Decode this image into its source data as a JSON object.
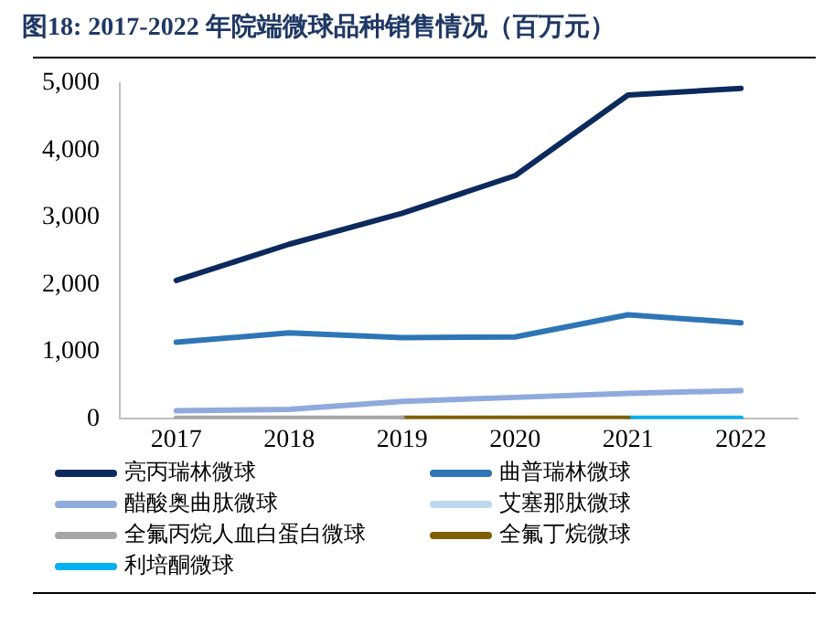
{
  "chart_data": {
    "type": "line",
    "title": "图18:  2017-2022 年院端微球品种销售情况（百万元）",
    "categories": [
      "2017",
      "2018",
      "2019",
      "2020",
      "2021",
      "2022"
    ],
    "series": [
      {
        "name": "亮丙瑞林微球",
        "color": "#0d2a5e",
        "values": [
          2060,
          2600,
          3060,
          3620,
          4820,
          4920
        ]
      },
      {
        "name": "曲普瑞林微球",
        "color": "#2e75b6",
        "values": [
          1140,
          1280,
          1210,
          1220,
          1550,
          1430
        ]
      },
      {
        "name": "醋酸奥曲肽微球",
        "color": "#8faadc",
        "values": [
          120,
          140,
          260,
          320,
          380,
          420
        ]
      },
      {
        "name": "艾塞那肽微球",
        "color": "#bdd7ee",
        "values": [
          null,
          null,
          null,
          null,
          null,
          null
        ]
      },
      {
        "name": "全氟丙烷人血白蛋白微球",
        "color": "#a6a6a6",
        "values": [
          10,
          10,
          10,
          null,
          null,
          null
        ]
      },
      {
        "name": "全氟丁烷微球",
        "color": "#7f6000",
        "values": [
          null,
          null,
          10,
          10,
          10,
          null
        ]
      },
      {
        "name": "利培酮微球",
        "color": "#00b0f0",
        "values": [
          null,
          null,
          null,
          null,
          10,
          10
        ]
      }
    ],
    "ylim": [
      0,
      5000
    ],
    "yticks": [
      0,
      {
        "value": 1000,
        "label": "1,000"
      },
      {
        "value": 2000,
        "label": "2,000"
      },
      {
        "value": 3000,
        "label": "3,000"
      },
      {
        "value": 4000,
        "label": "4,000"
      },
      {
        "value": 5000,
        "label": "5,000"
      }
    ],
    "grid": false,
    "legend": "bottom",
    "marker": "none",
    "line_style": "solid"
  }
}
